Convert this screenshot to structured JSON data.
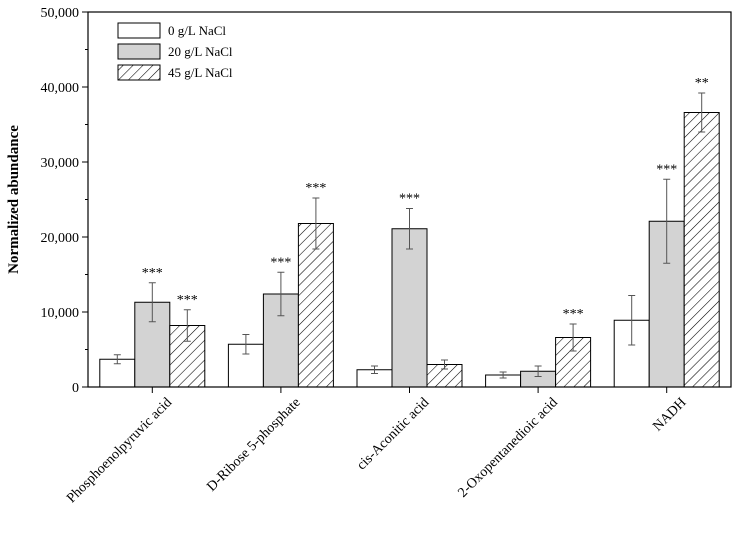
{
  "chart_data": {
    "type": "bar",
    "title": "",
    "xlabel": "",
    "ylabel": "Normalized abundance",
    "ylim": [
      0,
      50000
    ],
    "yticks": [
      0,
      10000,
      20000,
      30000,
      40000,
      50000
    ],
    "ytick_labels": [
      "0",
      "10,000",
      "20,000",
      "30,000",
      "40,000",
      "50,000"
    ],
    "legend_position": "top-left",
    "categories": [
      "Phosphoenolpyruvic acid",
      "D-Ribose 5-phosphate",
      "cis-Aconitic acid",
      "2-Oxopentanedioic acid",
      "NADH"
    ],
    "series": [
      {
        "name": "0 g/L NaCl",
        "pattern": "white",
        "values": [
          3700,
          5700,
          2300,
          1600,
          8900
        ],
        "errors": [
          600,
          1300,
          500,
          400,
          3300
        ],
        "significance": [
          "",
          "",
          "",
          "",
          ""
        ]
      },
      {
        "name": "20 g/L NaCl",
        "pattern": "gray",
        "values": [
          11300,
          12400,
          21100,
          2100,
          22100
        ],
        "errors": [
          2600,
          2900,
          2700,
          700,
          5600
        ],
        "significance": [
          "***",
          "***",
          "***",
          "",
          "***"
        ]
      },
      {
        "name": "45 g/L NaCl",
        "pattern": "hatch",
        "values": [
          8200,
          21800,
          3000,
          6600,
          36600
        ],
        "errors": [
          2100,
          3400,
          600,
          1800,
          2600
        ],
        "significance": [
          "***",
          "***",
          "",
          "***",
          "**"
        ]
      }
    ],
    "colors": {
      "white": "#ffffff",
      "gray": "#d3d3d3",
      "hatch_line": "#000000",
      "axis": "#000000"
    }
  }
}
